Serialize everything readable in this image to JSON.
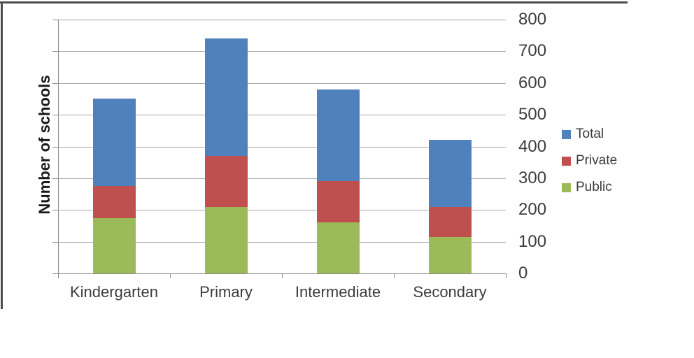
{
  "decor": {
    "border_color": "#4d4d4d"
  },
  "chart_data": {
    "type": "bar",
    "stacked": true,
    "title": "",
    "ylabel": "Number of schools",
    "xlabel": "",
    "categories": [
      "Kindergarten",
      "Primary",
      "Intermediate",
      "Secondary"
    ],
    "series": [
      {
        "name": "Public",
        "color": "#9bbb59",
        "values": [
          175,
          210,
          160,
          115
        ]
      },
      {
        "name": "Private",
        "color": "#c0504d",
        "values": [
          100,
          160,
          130,
          95
        ]
      },
      {
        "name": "Total",
        "color": "#4f81bd",
        "values": [
          275,
          370,
          290,
          210
        ]
      }
    ],
    "stack_totals": [
      550,
      740,
      580,
      420
    ],
    "legend": {
      "position": "right",
      "order": [
        "Total",
        "Private",
        "Public"
      ]
    },
    "y_axis": {
      "min": 0,
      "max": 800,
      "step": 100,
      "labels_side": "right",
      "tick_labels": [
        "800",
        "700",
        "600",
        "500",
        "400",
        "300",
        "200",
        "100",
        "0"
      ]
    },
    "grid": true,
    "colors": {
      "gridline": "#a8a8a8",
      "axis": "#8c8c8c",
      "text": "#3c3c3c"
    }
  }
}
